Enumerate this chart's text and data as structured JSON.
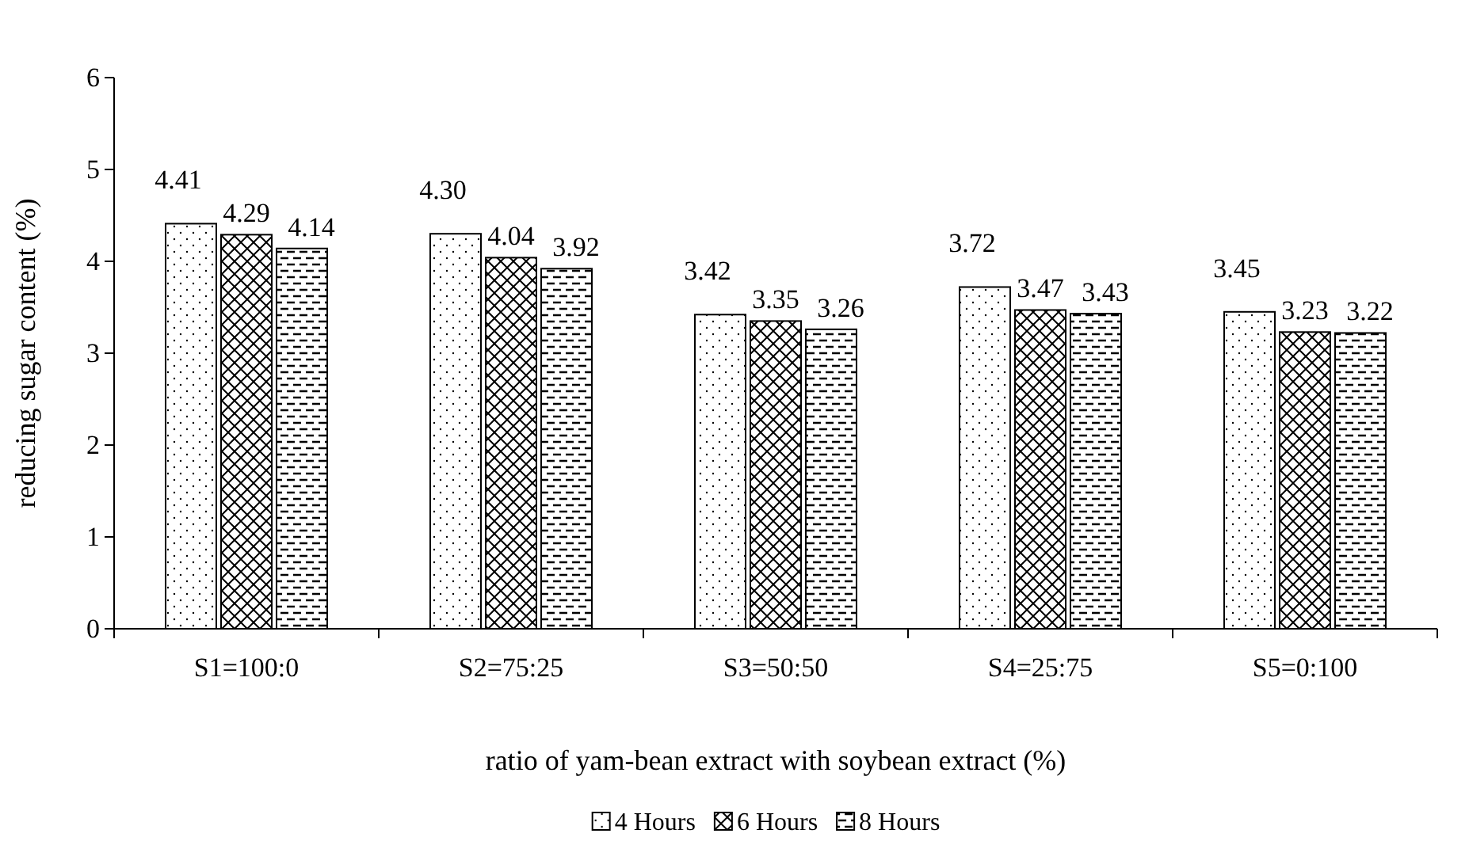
{
  "chart_data": {
    "type": "bar",
    "xlabel": "ratio of yam-bean extract with soybean extract (%)",
    "ylabel": "reducing sugar content (%)",
    "categories": [
      "S1=100:0",
      "S2=75:25",
      "S3=50:50",
      "S4=25:75",
      "S5=0:100"
    ],
    "series": [
      {
        "name": "4 Hours",
        "color": "#000000",
        "values": [
          4.41,
          4.3,
          3.42,
          3.72,
          3.45
        ],
        "value_labels": [
          "4.41",
          "4.30",
          "3.42",
          "3.72",
          "3.45"
        ]
      },
      {
        "name": "6 Hours",
        "color": "#000000",
        "values": [
          4.29,
          4.04,
          3.35,
          3.47,
          3.23
        ],
        "value_labels": [
          "4.29",
          "4.04",
          "3.35",
          "3.47",
          "3.23"
        ]
      },
      {
        "name": "8 Hours",
        "color": "#000000",
        "values": [
          4.14,
          3.92,
          3.26,
          3.43,
          3.22
        ],
        "value_labels": [
          "4.14",
          "3.92",
          "3.26",
          "3.43",
          "3.22"
        ]
      }
    ],
    "ylim": [
      0,
      6
    ],
    "yticks": [
      0,
      1,
      2,
      3,
      4,
      5,
      6
    ],
    "grid": false,
    "legend": "bottom"
  }
}
